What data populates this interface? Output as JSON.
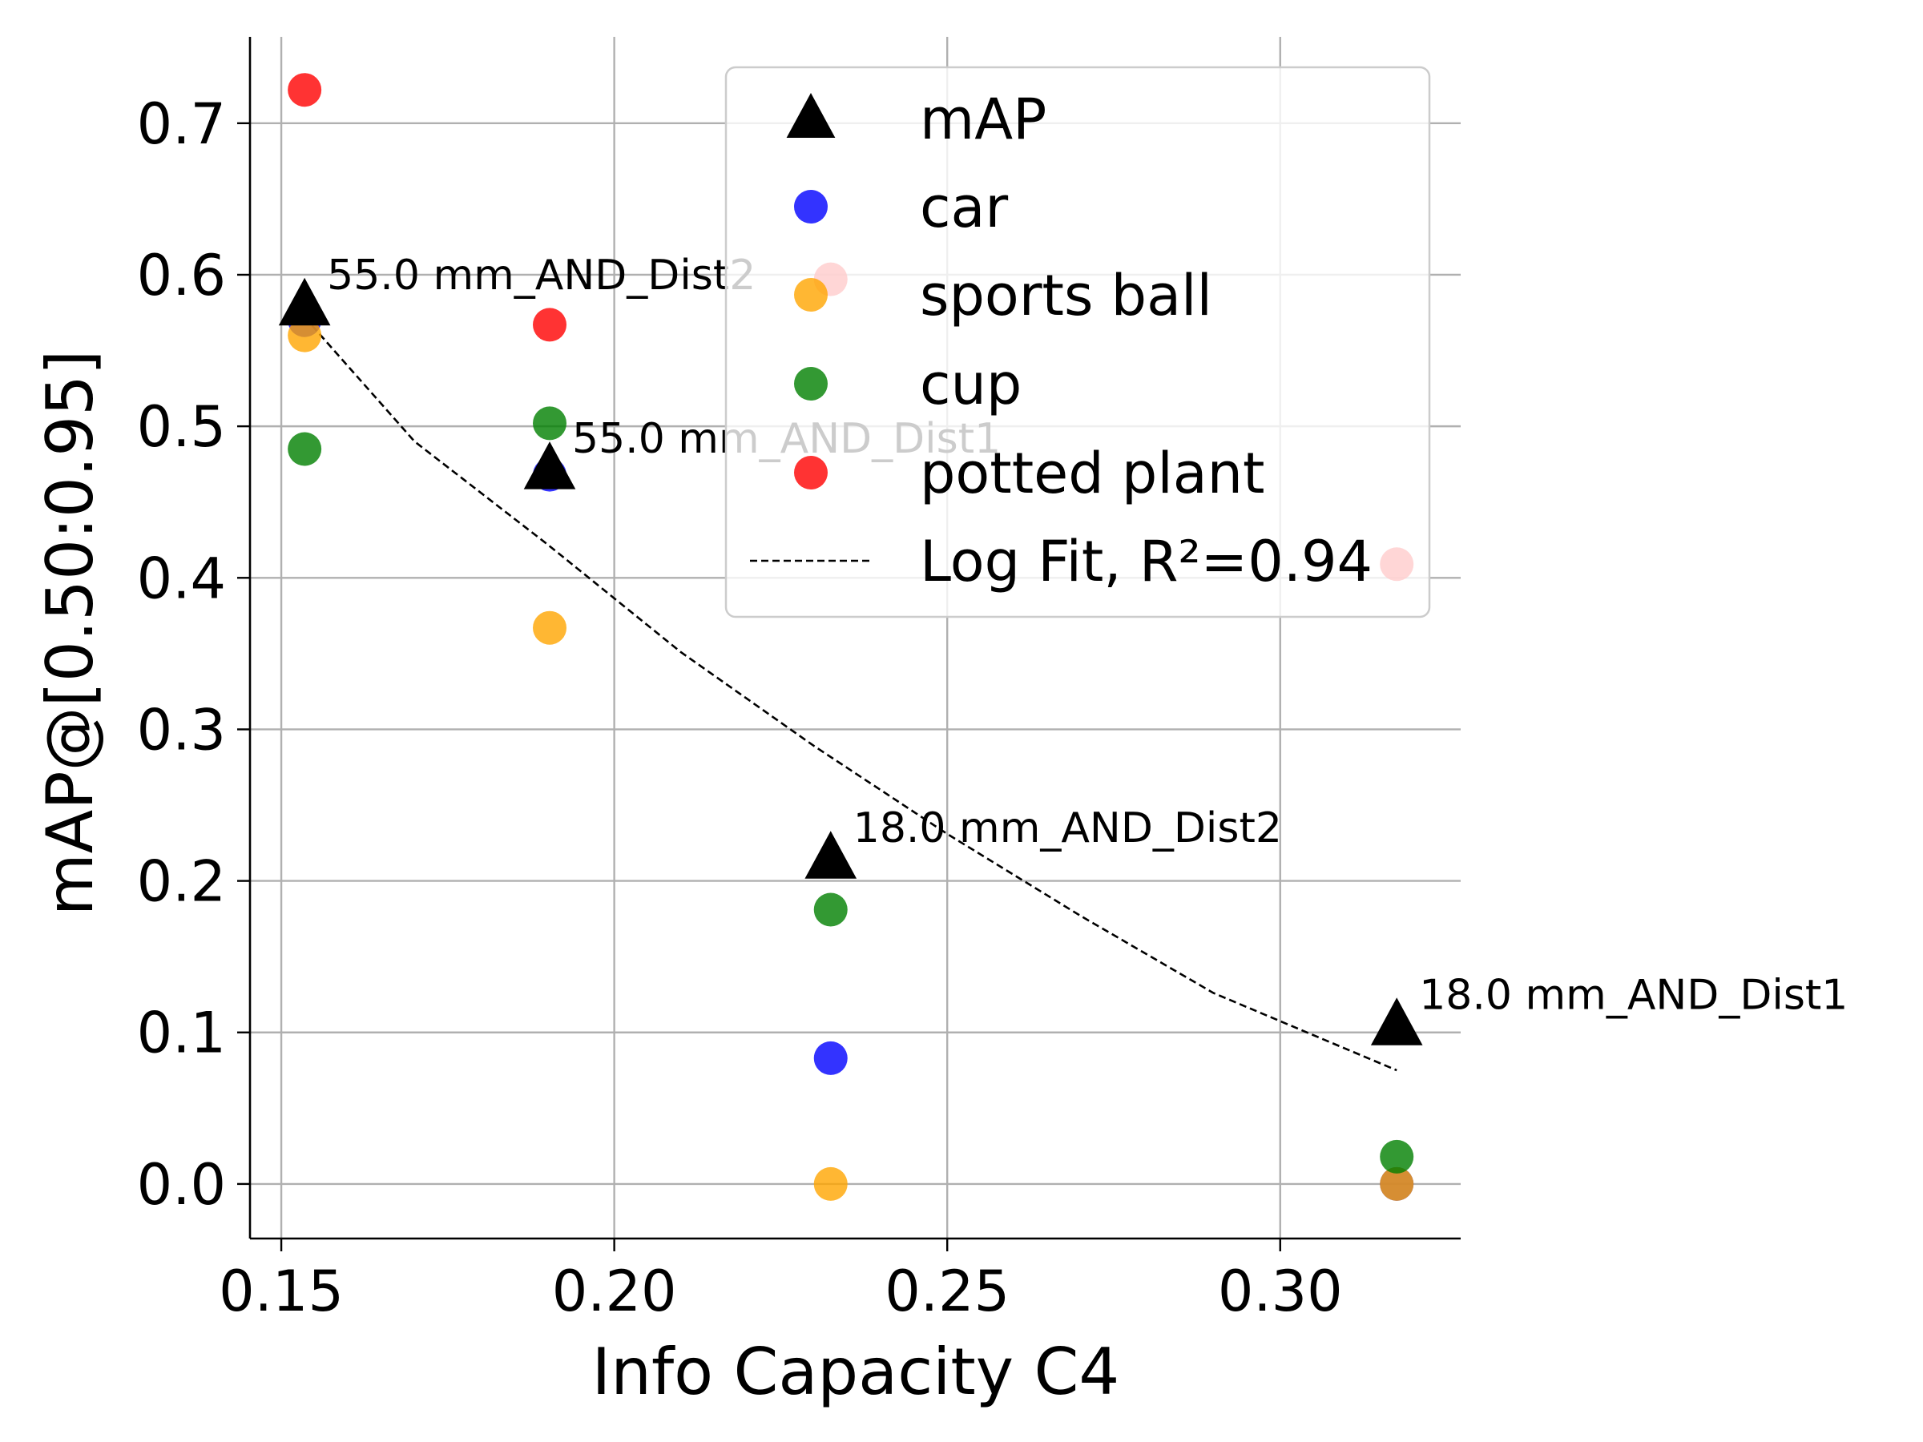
{
  "chart_data": {
    "type": "scatter",
    "xlabel": "Info Capacity C4",
    "ylabel": "mAP@[0.50:0.95]",
    "xlim": [
      0.1453,
      0.3271
    ],
    "ylim": [
      -0.036,
      0.757
    ],
    "xticks": [
      0.15,
      0.2,
      0.25,
      0.3
    ],
    "xtick_labels": [
      "0.15",
      "0.20",
      "0.25",
      "0.30"
    ],
    "yticks": [
      0.0,
      0.1,
      0.2,
      0.3,
      0.4,
      0.5,
      0.6,
      0.7
    ],
    "ytick_labels": [
      "0.0",
      "0.1",
      "0.2",
      "0.3",
      "0.4",
      "0.5",
      "0.6",
      "0.7"
    ],
    "grid": true,
    "legend_position": "upper-right",
    "series": [
      {
        "name": "mAP",
        "marker": "triangle",
        "color": "#000000",
        "points": [
          [
            0.1535,
            0.58
          ],
          [
            0.1903,
            0.472
          ],
          [
            0.2325,
            0.215
          ],
          [
            0.3175,
            0.105
          ]
        ]
      },
      {
        "name": "car",
        "marker": "circle",
        "color": "#0000ff",
        "points": [
          [
            0.1535,
            0.57
          ],
          [
            0.1903,
            0.468
          ],
          [
            0.2325,
            0.083
          ],
          [
            0.3175,
            0.0
          ]
        ]
      },
      {
        "name": "sports ball",
        "marker": "circle",
        "color": "#ffa500",
        "points": [
          [
            0.1535,
            0.56
          ],
          [
            0.1903,
            0.367
          ],
          [
            0.2325,
            0.0
          ],
          [
            0.3175,
            0.0
          ]
        ]
      },
      {
        "name": "cup",
        "marker": "circle",
        "color": "#008000",
        "points": [
          [
            0.1535,
            0.485
          ],
          [
            0.1903,
            0.502
          ],
          [
            0.2325,
            0.181
          ],
          [
            0.3175,
            0.018
          ]
        ]
      },
      {
        "name": "potted plant",
        "marker": "circle",
        "color": "#ff0000",
        "points": [
          [
            0.1535,
            0.722
          ],
          [
            0.1903,
            0.567
          ],
          [
            0.2325,
            0.597
          ],
          [
            0.3175,
            0.409
          ]
        ]
      }
    ],
    "fit": {
      "name": "Log Fit, R²=0.94",
      "style": "dashed",
      "color": "#000000",
      "points": [
        [
          0.1535,
          0.572
        ],
        [
          0.17,
          0.49
        ],
        [
          0.19,
          0.422
        ],
        [
          0.21,
          0.351
        ],
        [
          0.23,
          0.289
        ],
        [
          0.25,
          0.231
        ],
        [
          0.27,
          0.177
        ],
        [
          0.29,
          0.126
        ],
        [
          0.3175,
          0.075
        ]
      ]
    },
    "annotations": [
      {
        "text": "55.0 mm_AND_Dist2",
        "x": 0.1535,
        "y": 0.58
      },
      {
        "text": "55.0 mm_AND_Dist1",
        "x": 0.1903,
        "y": 0.472
      },
      {
        "text": "18.0 mm_AND_Dist2",
        "x": 0.2325,
        "y": 0.215
      },
      {
        "text": "18.0 mm_AND_Dist1",
        "x": 0.3175,
        "y": 0.105
      }
    ]
  }
}
